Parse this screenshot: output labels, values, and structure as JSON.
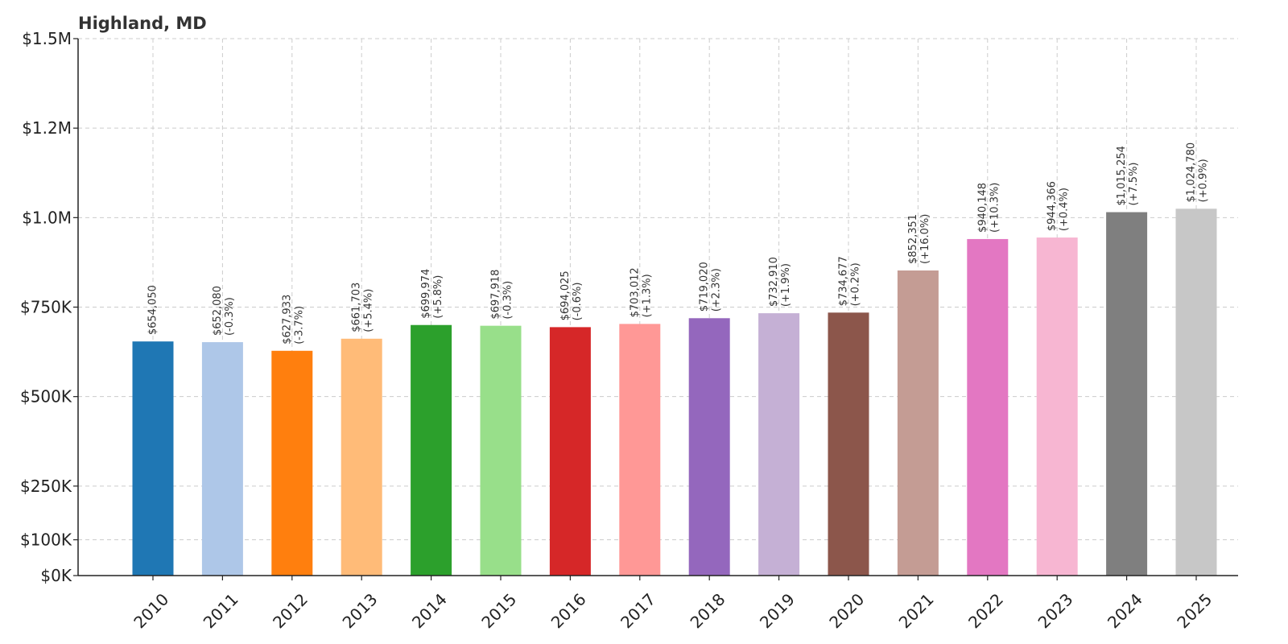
{
  "chart_data": {
    "type": "bar",
    "title": "Highland, MD",
    "xlabel": "",
    "ylabel": "",
    "ylim": [
      0,
      1500000
    ],
    "grid": true,
    "y_ticks": [
      {
        "value": 0,
        "label": "$0K"
      },
      {
        "value": 100000,
        "label": "$100K"
      },
      {
        "value": 250000,
        "label": "$250K"
      },
      {
        "value": 500000,
        "label": "$500K"
      },
      {
        "value": 750000,
        "label": "$750K"
      },
      {
        "value": 1000000,
        "label": "$1.0M"
      },
      {
        "value": 1250000,
        "label": "$1.2M"
      },
      {
        "value": 1500000,
        "label": "$1.5M"
      }
    ],
    "categories": [
      "2010",
      "2011",
      "2012",
      "2013",
      "2014",
      "2015",
      "2016",
      "2017",
      "2018",
      "2019",
      "2020",
      "2021",
      "2022",
      "2023",
      "2024",
      "2025"
    ],
    "values": [
      654050,
      652080,
      627933,
      661703,
      699974,
      697918,
      694025,
      703012,
      719020,
      732910,
      734677,
      852351,
      940148,
      944366,
      1015254,
      1024780
    ],
    "value_labels": [
      "$654,050",
      "$652,080",
      "$627,933",
      "$661,703",
      "$699,974",
      "$697,918",
      "$694,025",
      "$703,012",
      "$719,020",
      "$732,910",
      "$734,677",
      "$852,351",
      "$940,148",
      "$944,366",
      "$1,015,254",
      "$1,024,780"
    ],
    "change_labels": [
      "",
      "(-0.3%)",
      "(-3.7%)",
      "(+5.4%)",
      "(+5.8%)",
      "(-0.3%)",
      "(-0.6%)",
      "(+1.3%)",
      "(+2.3%)",
      "(+1.9%)",
      "(+0.2%)",
      "(+16.0%)",
      "(+10.3%)",
      "(+0.4%)",
      "(+7.5%)",
      "(+0.9%)"
    ],
    "colors": [
      "#1f77b4",
      "#aec7e8",
      "#ff7f0e",
      "#ffbb78",
      "#2ca02c",
      "#98df8a",
      "#d62728",
      "#ff9896",
      "#9467bd",
      "#c5b0d5",
      "#8c564b",
      "#c49c94",
      "#e377c2",
      "#f7b6d2",
      "#7f7f7f",
      "#c7c7c7"
    ]
  }
}
